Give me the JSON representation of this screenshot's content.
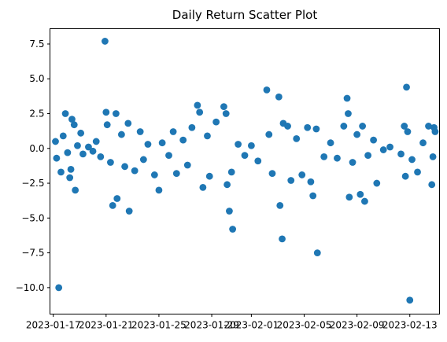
{
  "chart_data": {
    "type": "scatter",
    "title": "Daily Return Scatter Plot",
    "xlabel": "",
    "ylabel": "",
    "grid": false,
    "legend": "none",
    "marker_color": "#1f77b4",
    "x_range": [
      "2023-01-16 18:00",
      "2023-02-15 06:00"
    ],
    "ylim": [
      -11.9,
      8.6
    ],
    "x_ticks": [
      "2023-01-17",
      "2023-01-21",
      "2023-01-25",
      "2023-01-29",
      "2023-02-01",
      "2023-02-05",
      "2023-02-09",
      "2023-02-13"
    ],
    "y_ticks": [
      {
        "value": 7.5,
        "label": "7.5"
      },
      {
        "value": 5.0,
        "label": "5.0"
      },
      {
        "value": 2.5,
        "label": "2.5"
      },
      {
        "value": 0.0,
        "label": "0.0"
      },
      {
        "value": -2.5,
        "label": "−2.5"
      },
      {
        "value": -5.0,
        "label": "−5.0"
      },
      {
        "value": -7.5,
        "label": "−7.5"
      },
      {
        "value": -10.0,
        "label": "−10.0"
      }
    ],
    "points": [
      {
        "x": "2023-01-17 10:00",
        "y": -10.0
      },
      {
        "x": "2023-01-17 14:00",
        "y": -1.7
      },
      {
        "x": "2023-01-17 22:00",
        "y": 2.5
      },
      {
        "x": "2023-01-18 06:00",
        "y": -2.1
      },
      {
        "x": "2023-01-18 10:00",
        "y": 2.1
      },
      {
        "x": "2023-01-18 16:00",
        "y": -3.0
      },
      {
        "x": "2023-01-18 14:00",
        "y": 1.7
      },
      {
        "x": "2023-01-17 04:00",
        "y": 0.5
      },
      {
        "x": "2023-01-17 06:00",
        "y": -0.7
      },
      {
        "x": "2023-01-17 18:00",
        "y": 0.9
      },
      {
        "x": "2023-01-18 02:00",
        "y": -0.3
      },
      {
        "x": "2023-01-18 08:00",
        "y": -1.5
      },
      {
        "x": "2023-01-18 20:00",
        "y": 0.2
      },
      {
        "x": "2023-01-19 02:00",
        "y": 1.1
      },
      {
        "x": "2023-01-19 06:00",
        "y": -0.4
      },
      {
        "x": "2023-01-19 16:00",
        "y": 0.1
      },
      {
        "x": "2023-01-20 00:00",
        "y": -0.2
      },
      {
        "x": "2023-01-20 06:00",
        "y": 0.5
      },
      {
        "x": "2023-01-20 14:00",
        "y": -0.6
      },
      {
        "x": "2023-01-20 22:00",
        "y": 7.7
      },
      {
        "x": "2023-01-21 00:00",
        "y": 2.6
      },
      {
        "x": "2023-01-21 02:00",
        "y": 1.7
      },
      {
        "x": "2023-01-21 08:00",
        "y": -1.0
      },
      {
        "x": "2023-01-21 12:00",
        "y": -4.1
      },
      {
        "x": "2023-01-21 18:00",
        "y": 2.5
      },
      {
        "x": "2023-01-21 20:00",
        "y": -3.6
      },
      {
        "x": "2023-01-22 04:00",
        "y": 1.0
      },
      {
        "x": "2023-01-22 10:00",
        "y": -1.3
      },
      {
        "x": "2023-01-22 18:00",
        "y": -4.5
      },
      {
        "x": "2023-01-22 16:00",
        "y": 1.8
      },
      {
        "x": "2023-01-23 04:00",
        "y": -1.6
      },
      {
        "x": "2023-01-23 14:00",
        "y": 1.2
      },
      {
        "x": "2023-01-23 20:00",
        "y": -0.8
      },
      {
        "x": "2023-01-24 04:00",
        "y": 0.3
      },
      {
        "x": "2023-01-24 16:00",
        "y": -1.9
      },
      {
        "x": "2023-01-25 00:00",
        "y": -3.0
      },
      {
        "x": "2023-01-25 06:00",
        "y": 0.4
      },
      {
        "x": "2023-01-25 18:00",
        "y": -0.5
      },
      {
        "x": "2023-01-26 02:00",
        "y": 1.2
      },
      {
        "x": "2023-01-26 08:00",
        "y": -1.8
      },
      {
        "x": "2023-01-26 20:00",
        "y": 0.6
      },
      {
        "x": "2023-01-27 04:00",
        "y": -1.2
      },
      {
        "x": "2023-01-27 12:00",
        "y": 1.5
      },
      {
        "x": "2023-01-27 22:00",
        "y": 3.1
      },
      {
        "x": "2023-01-28 02:00",
        "y": 2.6
      },
      {
        "x": "2023-01-28 08:00",
        "y": -2.8
      },
      {
        "x": "2023-01-28 16:00",
        "y": 0.9
      },
      {
        "x": "2023-01-28 20:00",
        "y": -2.0
      },
      {
        "x": "2023-01-29 08:00",
        "y": 1.9
      },
      {
        "x": "2023-01-29 22:00",
        "y": 3.0
      },
      {
        "x": "2023-01-30 02:00",
        "y": 2.5
      },
      {
        "x": "2023-01-30 04:00",
        "y": -2.6
      },
      {
        "x": "2023-01-30 08:00",
        "y": -4.5
      },
      {
        "x": "2023-01-30 14:00",
        "y": -5.8
      },
      {
        "x": "2023-01-30 12:00",
        "y": -1.7
      },
      {
        "x": "2023-01-31 00:00",
        "y": 0.3
      },
      {
        "x": "2023-01-31 12:00",
        "y": -0.5
      },
      {
        "x": "2023-02-01 00:00",
        "y": 0.2
      },
      {
        "x": "2023-02-01 12:00",
        "y": -0.9
      },
      {
        "x": "2023-02-02 04:00",
        "y": 4.2
      },
      {
        "x": "2023-02-02 08:00",
        "y": 1.0
      },
      {
        "x": "2023-02-02 14:00",
        "y": -1.8
      },
      {
        "x": "2023-02-03 02:00",
        "y": 3.7
      },
      {
        "x": "2023-02-03 04:00",
        "y": -4.1
      },
      {
        "x": "2023-02-03 08:00",
        "y": -6.5
      },
      {
        "x": "2023-02-03 10:00",
        "y": 1.8
      },
      {
        "x": "2023-02-03 18:00",
        "y": 1.6
      },
      {
        "x": "2023-02-04 00:00",
        "y": -2.3
      },
      {
        "x": "2023-02-04 10:00",
        "y": 0.7
      },
      {
        "x": "2023-02-04 20:00",
        "y": -1.9
      },
      {
        "x": "2023-02-05 06:00",
        "y": 1.5
      },
      {
        "x": "2023-02-05 16:00",
        "y": -3.4
      },
      {
        "x": "2023-02-05 12:00",
        "y": -2.4
      },
      {
        "x": "2023-02-06 00:00",
        "y": -7.5
      },
      {
        "x": "2023-02-05 22:00",
        "y": 1.4
      },
      {
        "x": "2023-02-06 12:00",
        "y": -0.6
      },
      {
        "x": "2023-02-07 00:00",
        "y": 0.4
      },
      {
        "x": "2023-02-07 12:00",
        "y": -0.7
      },
      {
        "x": "2023-02-08 00:00",
        "y": 1.6
      },
      {
        "x": "2023-02-08 06:00",
        "y": 3.6
      },
      {
        "x": "2023-02-08 08:00",
        "y": 2.5
      },
      {
        "x": "2023-02-08 10:00",
        "y": -3.5
      },
      {
        "x": "2023-02-08 16:00",
        "y": -1.0
      },
      {
        "x": "2023-02-09 00:00",
        "y": 1.0
      },
      {
        "x": "2023-02-09 06:00",
        "y": -3.3
      },
      {
        "x": "2023-02-09 10:00",
        "y": 1.6
      },
      {
        "x": "2023-02-09 14:00",
        "y": -3.8
      },
      {
        "x": "2023-02-09 20:00",
        "y": -0.5
      },
      {
        "x": "2023-02-10 06:00",
        "y": 0.6
      },
      {
        "x": "2023-02-10 12:00",
        "y": -2.5
      },
      {
        "x": "2023-02-11 00:00",
        "y": -0.1
      },
      {
        "x": "2023-02-11 12:00",
        "y": 0.1
      },
      {
        "x": "2023-02-12 08:00",
        "y": -0.4
      },
      {
        "x": "2023-02-12 14:00",
        "y": 1.6
      },
      {
        "x": "2023-02-12 18:00",
        "y": 4.4
      },
      {
        "x": "2023-02-12 20:00",
        "y": 1.2
      },
      {
        "x": "2023-02-12 16:00",
        "y": -2.0
      },
      {
        "x": "2023-02-13 00:00",
        "y": -10.9
      },
      {
        "x": "2023-02-13 04:00",
        "y": -0.8
      },
      {
        "x": "2023-02-13 14:00",
        "y": -1.7
      },
      {
        "x": "2023-02-14 00:00",
        "y": 0.4
      },
      {
        "x": "2023-02-14 10:00",
        "y": 1.6
      },
      {
        "x": "2023-02-14 16:00",
        "y": -2.6
      },
      {
        "x": "2023-02-14 20:00",
        "y": 1.5
      },
      {
        "x": "2023-02-14 22:00",
        "y": 1.2
      },
      {
        "x": "2023-02-14 18:00",
        "y": -0.6
      }
    ]
  }
}
